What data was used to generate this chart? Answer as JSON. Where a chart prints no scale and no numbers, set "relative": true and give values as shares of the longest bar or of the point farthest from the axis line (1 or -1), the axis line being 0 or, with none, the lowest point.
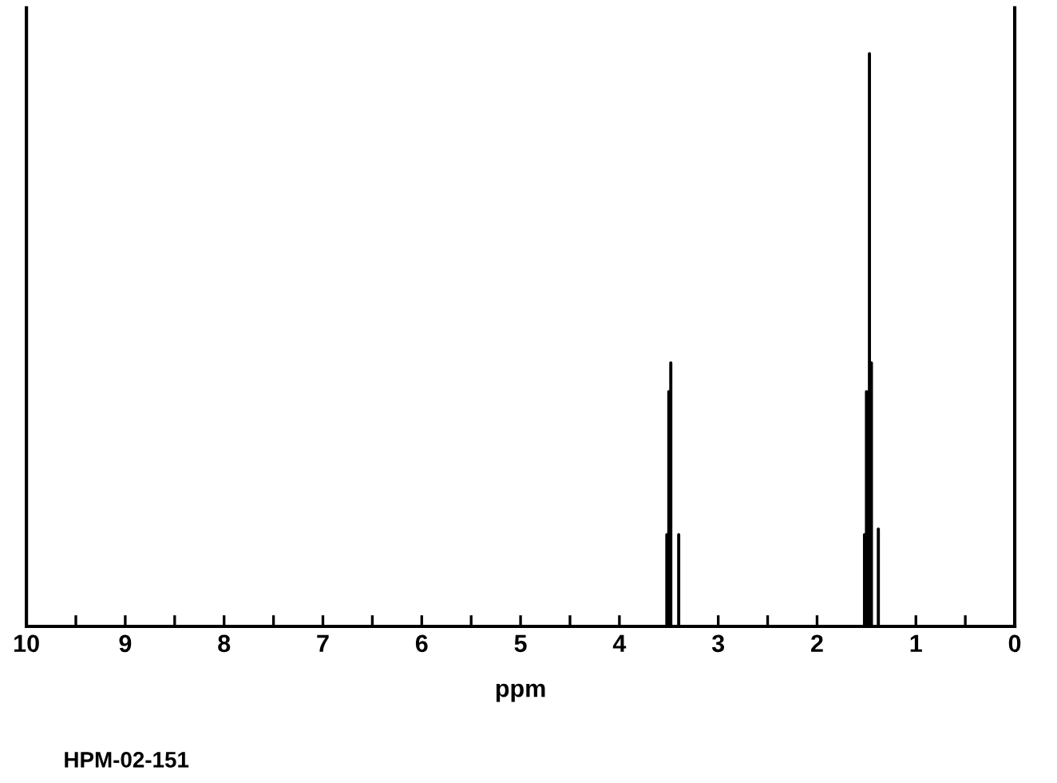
{
  "chart_data": {
    "type": "line",
    "relative": true,
    "xlabel": "ppm",
    "annotations": [
      "HPM-02-151"
    ],
    "x": [
      10,
      3.53,
      3.52,
      3.52,
      3.52,
      3.5,
      3.5,
      3.5,
      3.48,
      3.48,
      3.48,
      3.4,
      3.4,
      3.4,
      1.53,
      1.52,
      1.52,
      1.52,
      1.5,
      1.5,
      1.5,
      1.47,
      1.47,
      1.47,
      1.45,
      1.45,
      1.45,
      1.38,
      1.38,
      1.38,
      0
    ],
    "series": [
      {
        "color": "#000000",
        "values": [
          0,
          0,
          0,
          0.16,
          0,
          0,
          0.41,
          0,
          0,
          0.46,
          0,
          0,
          0.16,
          0,
          0,
          0,
          0.16,
          0,
          0,
          0.41,
          0,
          0,
          1,
          0,
          0,
          0.46,
          0,
          0,
          0.17,
          0,
          0
        ]
      }
    ],
    "xlim": [
      10,
      0
    ],
    "xticks": [
      10,
      9,
      8,
      7,
      6,
      5,
      4,
      3,
      2,
      1,
      0
    ],
    "grid": false,
    "legend": false,
    "line_style": "solid",
    "marker": "none"
  }
}
